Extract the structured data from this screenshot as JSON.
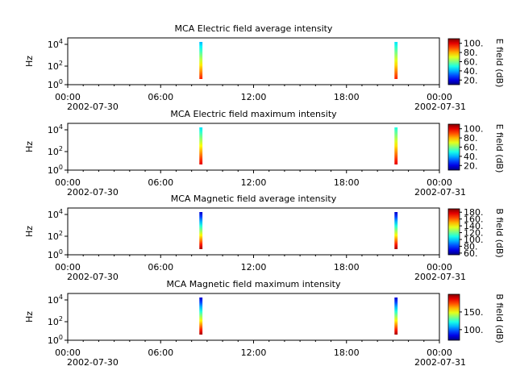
{
  "chart_data": [
    {
      "type": "heatmap",
      "title": "MCA  Electric field average intensity",
      "ylabel": "Hz",
      "y_ticks": [
        "10^0",
        "10^2",
        "10^4"
      ],
      "y_scale": "log",
      "x_ticks": [
        "00:00",
        "06:00",
        "12:00",
        "18:00",
        "00:00"
      ],
      "x_dates": [
        "2002-07-30",
        "2002-07-31"
      ],
      "xlim_hours": [
        0,
        24
      ],
      "colorbar": {
        "label": "E field (dB)",
        "ticks": [
          20,
          40,
          60,
          80,
          100
        ],
        "range": [
          10,
          110
        ]
      },
      "segments": [
        {
          "start_hour": 8.5,
          "end_hour": 8.7,
          "high_hz_level": 40,
          "low_hz_level": 95
        },
        {
          "start_hour": 21.1,
          "end_hour": 21.3,
          "high_hz_level": 45,
          "low_hz_level": 95
        }
      ]
    },
    {
      "type": "heatmap",
      "title": "MCA  Electric field maximum intensity",
      "ylabel": "Hz",
      "y_ticks": [
        "10^0",
        "10^2",
        "10^4"
      ],
      "y_scale": "log",
      "x_ticks": [
        "00:00",
        "06:00",
        "12:00",
        "18:00",
        "00:00"
      ],
      "x_dates": [
        "2002-07-30",
        "2002-07-31"
      ],
      "xlim_hours": [
        0,
        24
      ],
      "colorbar": {
        "label": "E field (dB)",
        "ticks": [
          20,
          40,
          60,
          80,
          100
        ],
        "range": [
          10,
          110
        ]
      },
      "segments": [
        {
          "start_hour": 8.5,
          "end_hour": 8.7,
          "high_hz_level": 45,
          "low_hz_level": 100
        },
        {
          "start_hour": 21.1,
          "end_hour": 21.3,
          "high_hz_level": 50,
          "low_hz_level": 100
        }
      ]
    },
    {
      "type": "heatmap",
      "title": "MCA  Magnetic field average intensity",
      "ylabel": "Hz",
      "y_ticks": [
        "10^0",
        "10^2",
        "10^4"
      ],
      "y_scale": "log",
      "x_ticks": [
        "00:00",
        "06:00",
        "12:00",
        "18:00",
        "00:00"
      ],
      "x_dates": [
        "2002-07-30",
        "2002-07-31"
      ],
      "xlim_hours": [
        0,
        24
      ],
      "colorbar": {
        "label": "B field (dB)",
        "ticks": [
          60,
          80,
          100,
          120,
          140,
          160,
          180
        ],
        "range": [
          55,
          190
        ]
      },
      "segments": [
        {
          "start_hour": 8.5,
          "end_hour": 8.7,
          "high_hz_level": 65,
          "low_hz_level": 185
        },
        {
          "start_hour": 21.1,
          "end_hour": 21.3,
          "high_hz_level": 65,
          "low_hz_level": 185
        }
      ]
    },
    {
      "type": "heatmap",
      "title": "MCA  Magnetic field maximum intensity",
      "ylabel": "Hz",
      "y_ticks": [
        "10^0",
        "10^2",
        "10^4"
      ],
      "y_scale": "log",
      "x_ticks": [
        "00:00",
        "06:00",
        "12:00",
        "18:00",
        "00:00"
      ],
      "x_dates": [
        "2002-07-30",
        "2002-07-31"
      ],
      "xlim_hours": [
        0,
        24
      ],
      "colorbar": {
        "label": "B field (dB)",
        "ticks": [
          100,
          150
        ],
        "range": [
          70,
          200
        ]
      },
      "segments": [
        {
          "start_hour": 8.5,
          "end_hour": 8.7,
          "high_hz_level": 80,
          "low_hz_level": 195
        },
        {
          "start_hour": 21.1,
          "end_hour": 21.3,
          "high_hz_level": 80,
          "low_hz_level": 195
        }
      ]
    }
  ]
}
